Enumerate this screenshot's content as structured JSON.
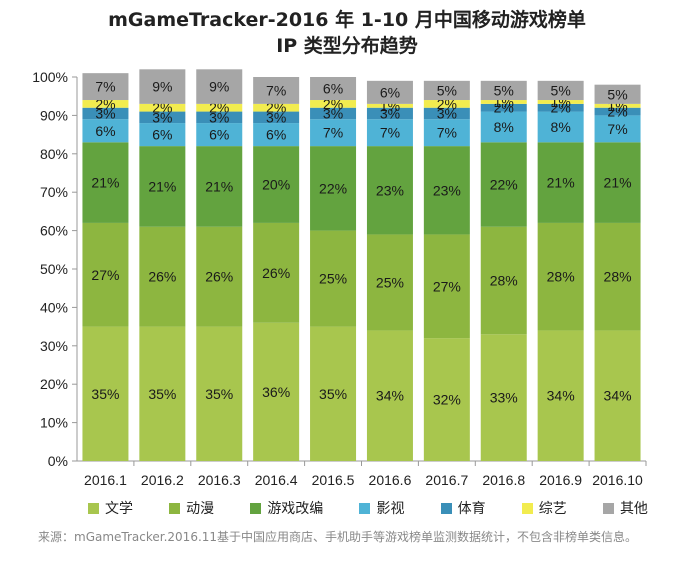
{
  "chart_data": {
    "type": "bar",
    "stacked": true,
    "percent": true,
    "title": "mGameTracker-2016 年 1-10 月中国移动游戏榜单",
    "subtitle": "IP 类型分布趋势",
    "categories": [
      "2016.1",
      "2016.2",
      "2016.3",
      "2016.4",
      "2016.5",
      "2016.6",
      "2016.7",
      "2016.8",
      "2016.9",
      "2016.10"
    ],
    "ylim": [
      0,
      100
    ],
    "yticks": [
      "0%",
      "10%",
      "20%",
      "30%",
      "40%",
      "50%",
      "60%",
      "70%",
      "80%",
      "90%",
      "100%"
    ],
    "series": [
      {
        "name": "文学",
        "color": "#a8c64e",
        "values": [
          35,
          35,
          35,
          36,
          35,
          34,
          32,
          33,
          34,
          34
        ]
      },
      {
        "name": "动漫",
        "color": "#8db640",
        "values": [
          27,
          26,
          26,
          26,
          25,
          25,
          27,
          28,
          28,
          28
        ]
      },
      {
        "name": "游戏改编",
        "color": "#63a33f",
        "values": [
          21,
          21,
          21,
          20,
          22,
          23,
          23,
          22,
          21,
          21
        ]
      },
      {
        "name": "影视",
        "color": "#4fb3d6",
        "values": [
          6,
          6,
          6,
          6,
          7,
          7,
          7,
          8,
          8,
          7
        ]
      },
      {
        "name": "体育",
        "color": "#3a8fb8",
        "values": [
          3,
          3,
          3,
          3,
          3,
          3,
          3,
          2,
          2,
          2
        ]
      },
      {
        "name": "综艺",
        "color": "#f2ec4f",
        "values": [
          2,
          2,
          2,
          2,
          2,
          1,
          2,
          1,
          1,
          1
        ]
      },
      {
        "name": "其他",
        "color": "#a6a6a6",
        "values": [
          7,
          9,
          9,
          7,
          6,
          6,
          5,
          5,
          5,
          5
        ]
      }
    ],
    "legend_position": "bottom",
    "source": "来源：mGameTracker.2016.11基于中国应用商店、手机助手等游戏榜单监测数据统计，不包含非榜单类信息。"
  }
}
